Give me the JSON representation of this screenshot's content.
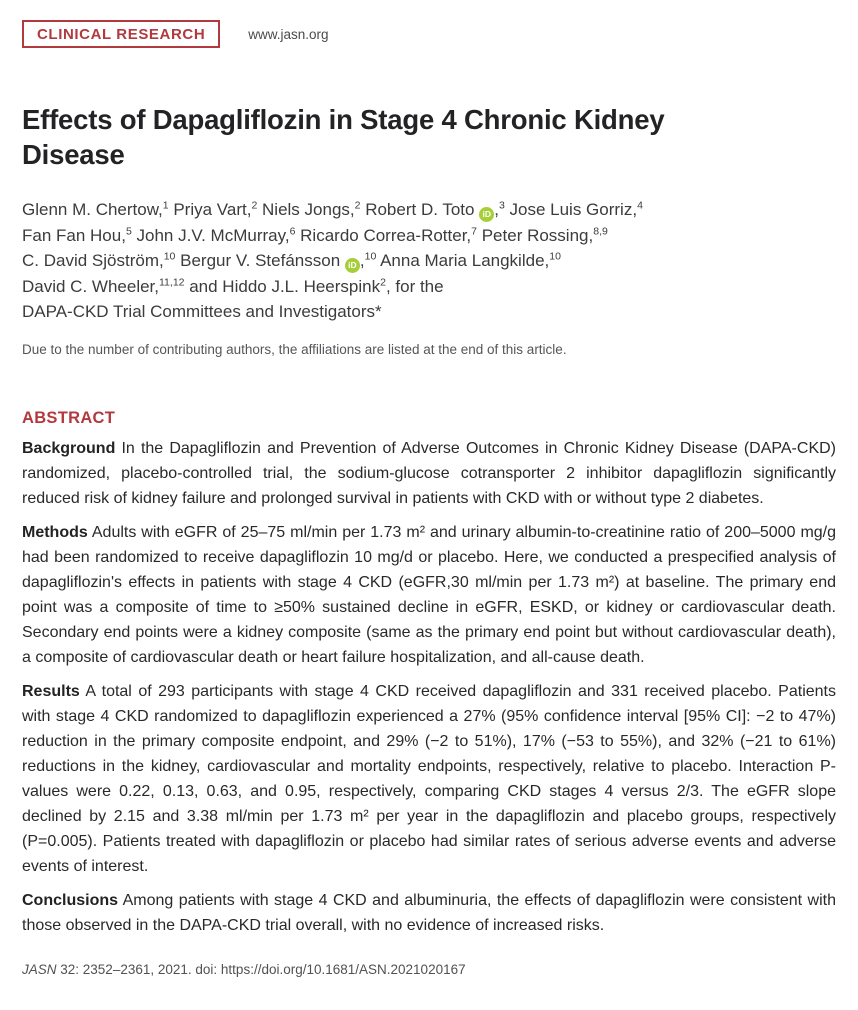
{
  "header": {
    "badge": "CLINICAL RESEARCH",
    "url": "www.jasn.org"
  },
  "title": "Effects of Dapagliflozin in Stage 4 Chronic Kidney Disease",
  "authors": {
    "lines": [
      [
        {
          "text": "Glenn M. Chertow,",
          "sup": "1"
        },
        {
          "text": " Priya Vart,",
          "sup": "2"
        },
        {
          "text": " Niels Jongs,",
          "sup": "2"
        },
        {
          "text": " Robert D. Toto ",
          "orcid": true
        },
        {
          "text": ",",
          "sup": "3"
        },
        {
          "text": " Jose Luis Gorriz,",
          "sup": "4"
        }
      ],
      [
        {
          "text": "Fan Fan Hou,",
          "sup": "5"
        },
        {
          "text": " John J.V. McMurray,",
          "sup": "6"
        },
        {
          "text": " Ricardo Correa-Rotter,",
          "sup": "7"
        },
        {
          "text": " Peter Rossing,",
          "sup": "8,9"
        }
      ],
      [
        {
          "text": "C. David Sjöström,",
          "sup": "10"
        },
        {
          "text": " Bergur V. Stefánsson ",
          "orcid": true
        },
        {
          "text": ",",
          "sup": "10"
        },
        {
          "text": " Anna Maria Langkilde,",
          "sup": "10"
        }
      ],
      [
        {
          "text": "David C. Wheeler,",
          "sup": "11,12"
        },
        {
          "text": " and Hiddo J.L. Heerspink",
          "sup": "2"
        },
        {
          "text": ", for the"
        }
      ],
      [
        {
          "text": "DAPA-CKD Trial Committees and Investigators*"
        }
      ]
    ],
    "note": "Due to the number of contributing authors, the affiliations are listed at the end of this article."
  },
  "abstract": {
    "heading": "ABSTRACT",
    "sections": [
      {
        "label": "Background",
        "text": "In the Dapagliflozin and Prevention of Adverse Outcomes in Chronic Kidney Disease (DAPA-CKD) randomized, placebo-controlled trial, the sodium-glucose cotransporter 2 inhibitor dapagliflozin significantly reduced risk of kidney failure and prolonged survival in patients with CKD with or without type 2 diabetes."
      },
      {
        "label": "Methods",
        "text": "Adults with eGFR of 25–75 ml/min per 1.73 m² and urinary albumin-to-creatinine ratio of 200–5000 mg/g had been randomized to receive dapagliflozin 10 mg/d or placebo. Here, we conducted a prespecified analysis of dapagliflozin's effects in patients with stage 4 CKD (eGFR,30 ml/min per 1.73 m²) at baseline. The primary end point was a composite of time to ≥50% sustained decline in eGFR, ESKD, or kidney or cardiovascular death. Secondary end points were a kidney composite (same as the primary end point but without cardiovascular death), a composite of cardiovascular death or heart failure hospitalization, and all-cause death."
      },
      {
        "label": "Results",
        "text": "A total of 293 participants with stage 4 CKD received dapagliflozin and 331 received placebo. Patients with stage 4 CKD randomized to dapagliflozin experienced a 27% (95% confidence interval [95% CI]: −2 to 47%) reduction in the primary composite endpoint, and 29% (−2 to 51%), 17% (−53 to 55%), and 32% (−21 to 61%) reductions in the kidney, cardiovascular and mortality endpoints, respectively, relative to placebo. Interaction P-values were 0.22, 0.13, 0.63, and 0.95, respectively, comparing CKD stages 4 versus 2/3. The eGFR slope declined by 2.15 and 3.38 ml/min per 1.73 m² per year in the dapagliflozin and placebo groups, respectively (P=0.005). Patients treated with dapagliflozin or placebo had similar rates of serious adverse events and adverse events of interest."
      },
      {
        "label": "Conclusions",
        "text": "Among patients with stage 4 CKD and albuminuria, the effects of dapagliflozin were consistent with those observed in the DAPA-CKD trial overall, with no evidence of increased risks."
      }
    ]
  },
  "footer": {
    "journal": "JASN",
    "citation": " 32: 2352–2361, 2021. doi: ",
    "doi_url": "https://doi.org/10.1681/ASN.2021020167"
  },
  "icons": {
    "orcid_glyph": "iD"
  },
  "colors": {
    "accent_red": "#b23a3e",
    "orcid_green": "#a6ce39"
  }
}
